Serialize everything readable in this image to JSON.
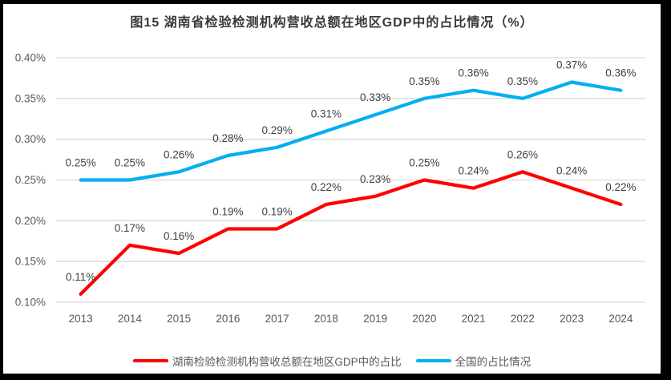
{
  "title": "图15 湖南省检验检测机构营收总额在地区GDP中的占比情况（%）",
  "chart_data": {
    "type": "line",
    "title": "图15 湖南省检验检测机构营收总额在地区GDP中的占比情况（%）",
    "categories": [
      "2013",
      "2014",
      "2015",
      "2016",
      "2017",
      "2018",
      "2019",
      "2020",
      "2021",
      "2022",
      "2023",
      "2024"
    ],
    "series": [
      {
        "name": "湖南检验检测机构营收总额在地区GDP中的占比",
        "color": "#FF0000",
        "values": [
          0.11,
          0.17,
          0.16,
          0.19,
          0.19,
          0.22,
          0.23,
          0.25,
          0.24,
          0.26,
          0.24,
          0.22
        ],
        "labels": [
          "0.11%",
          "0.17%",
          "0.16%",
          "0.19%",
          "0.19%",
          "0.22%",
          "0.23%",
          "0.25%",
          "0.24%",
          "0.26%",
          "0.24%",
          "0.22%"
        ]
      },
      {
        "name": "全国的占比情况",
        "color": "#00B0F0",
        "values": [
          0.25,
          0.25,
          0.26,
          0.28,
          0.29,
          0.31,
          0.33,
          0.35,
          0.36,
          0.35,
          0.37,
          0.36
        ],
        "labels": [
          "0.25%",
          "0.25%",
          "0.26%",
          "0.28%",
          "0.29%",
          "0.31%",
          "0.33%",
          "0.35%",
          "0.36%",
          "0.35%",
          "0.37%",
          "0.36%"
        ]
      }
    ],
    "y_ticks": [
      "0.40%",
      "0.35%",
      "0.30%",
      "0.25%",
      "0.20%",
      "0.15%",
      "0.10%"
    ],
    "ylim": [
      0.1,
      0.4
    ],
    "xlabel": "",
    "ylabel": "",
    "grid": true,
    "legend_position": "bottom"
  },
  "colors": {
    "grid": "#D9D9D9",
    "axis_text": "#595959",
    "data_label_text": "#404040",
    "series_red": "#FF0000",
    "series_blue": "#00B0F0",
    "frame_border": "#000000",
    "background": "#FFFFFF"
  }
}
